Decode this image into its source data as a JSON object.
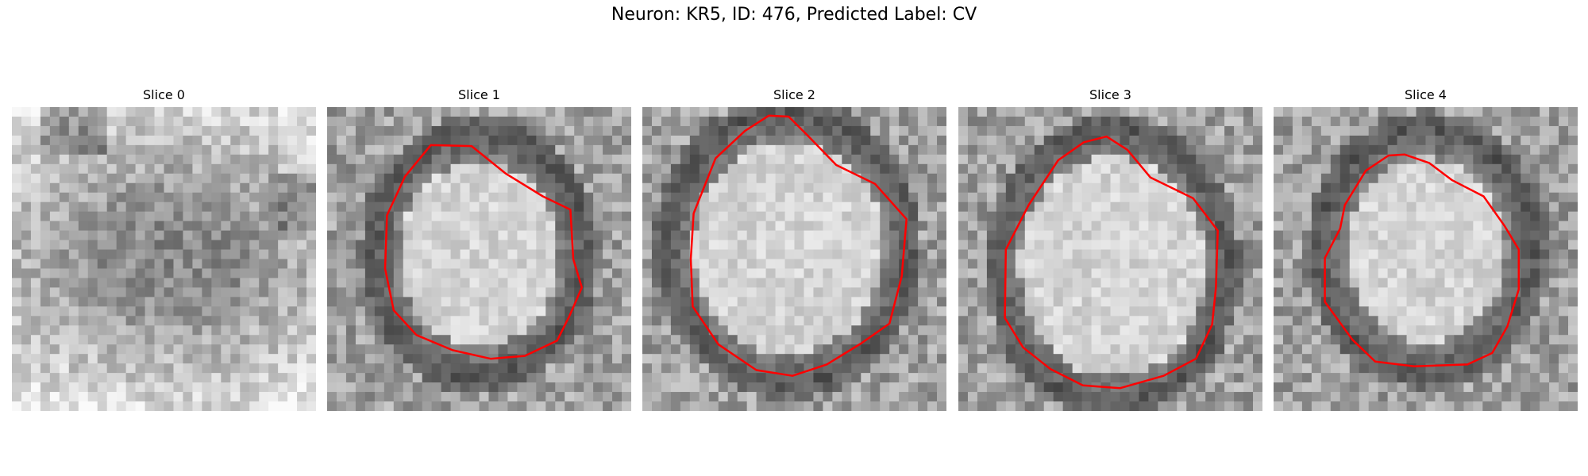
{
  "title": "Neuron: KR5, ID: 476, Predicted Label: CV",
  "contour_color": "#ff0000",
  "slices": [
    {
      "label": "Slice 0",
      "has_contour": false
    },
    {
      "label": "Slice 1",
      "has_contour": true
    },
    {
      "label": "Slice 2",
      "has_contour": true
    },
    {
      "label": "Slice 3",
      "has_contour": true
    },
    {
      "label": "Slice 4",
      "has_contour": true
    }
  ]
}
